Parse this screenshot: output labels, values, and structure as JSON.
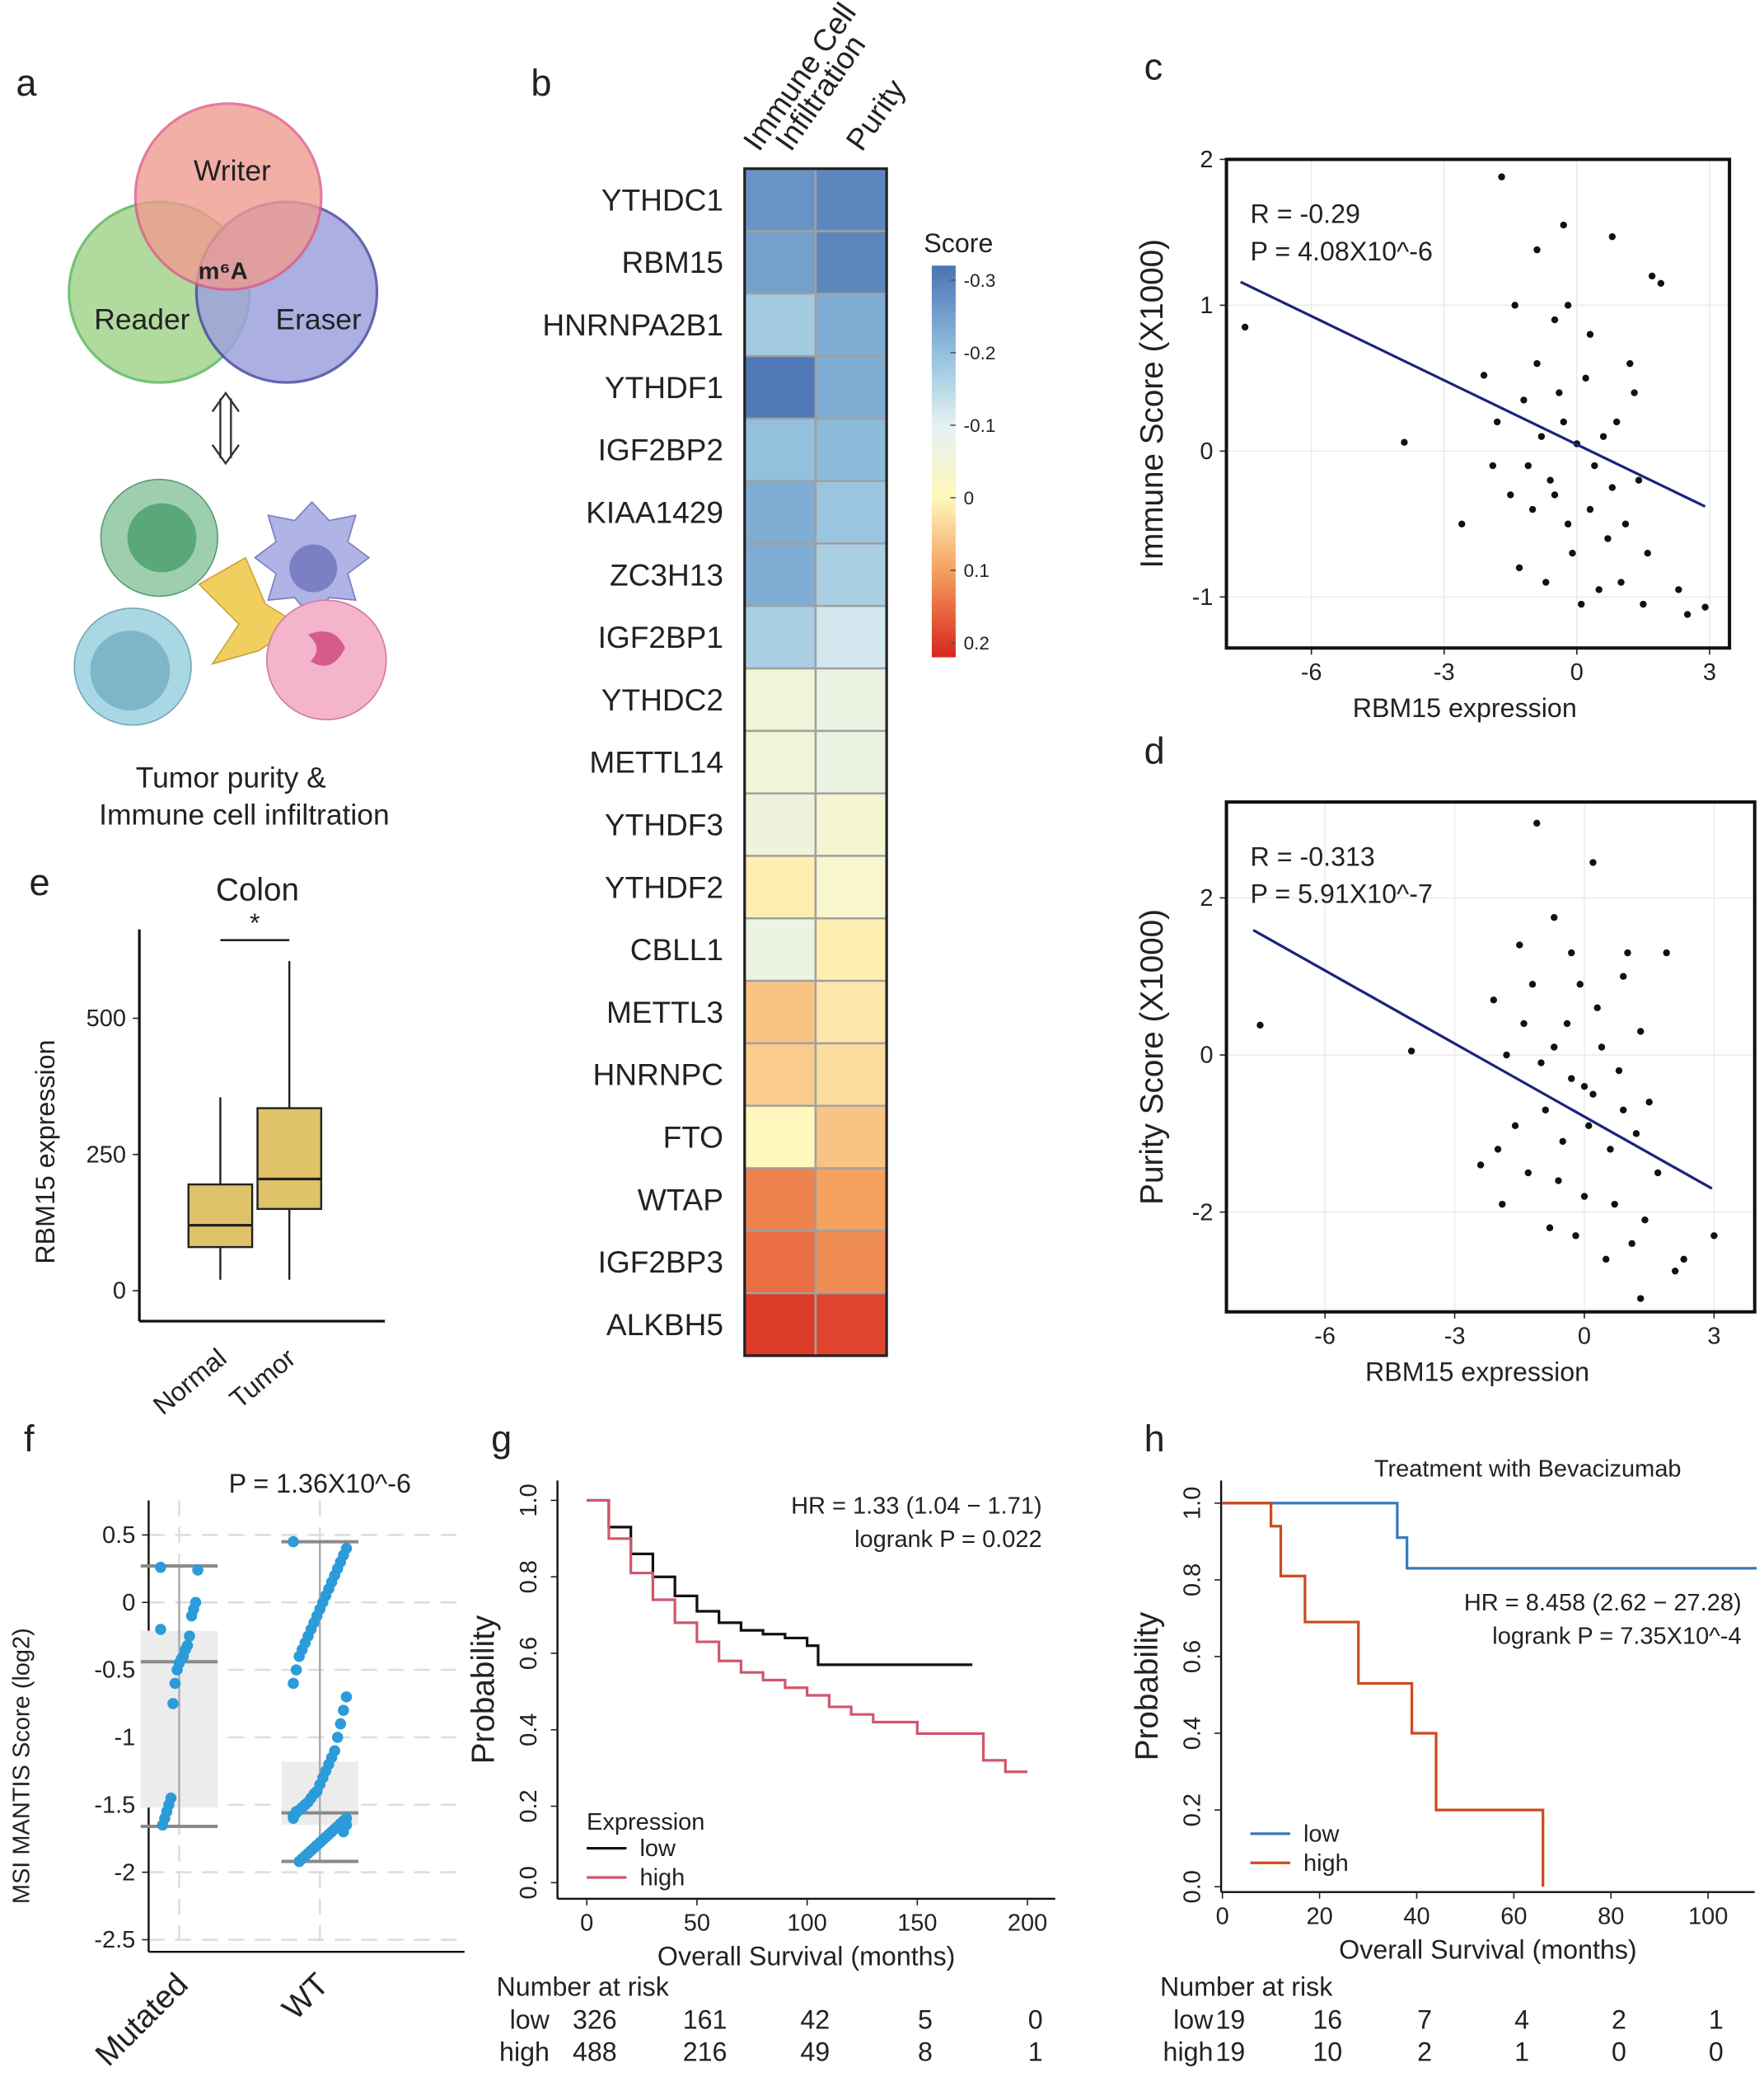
{
  "diagram": {
    "panel": "a",
    "writer": "Writer",
    "reader": "Reader",
    "eraser": "Eraser",
    "center": "m⁶A",
    "caption": [
      "Tumor purity &",
      "Immune cell infiltration"
    ]
  },
  "chart_data": [
    {
      "type": "heatmap",
      "panel": "b",
      "columns": [
        [
          "Immune Cell",
          "Infiltration"
        ],
        [
          "Purity"
        ]
      ],
      "rows": [
        "YTHDC1",
        "RBM15",
        "HNRNPA2B1",
        "YTHDF1",
        "IGF2BP2",
        "KIAA1429",
        "ZC3H13",
        "IGF2BP1",
        "YTHDC2",
        "METTL14",
        "YTHDF3",
        "YTHDF2",
        "CBLL1",
        "METTL3",
        "HNRNPC",
        "FTO",
        "WTAP",
        "IGF2BP3",
        "ALKBH5"
      ],
      "highlight_row": 1,
      "highlight_color": "#d7191c",
      "values": [
        [
          -0.27,
          -0.29
        ],
        [
          -0.25,
          -0.29
        ],
        [
          -0.18,
          -0.23
        ],
        [
          -0.31,
          -0.23
        ],
        [
          -0.2,
          -0.21
        ],
        [
          -0.23,
          -0.19
        ],
        [
          -0.23,
          -0.17
        ],
        [
          -0.17,
          -0.12
        ],
        [
          -0.05,
          -0.07
        ],
        [
          -0.05,
          -0.07
        ],
        [
          -0.06,
          -0.04
        ],
        [
          0.01,
          -0.03
        ],
        [
          -0.07,
          0.01
        ],
        [
          0.06,
          0.02
        ],
        [
          0.05,
          0.03
        ],
        [
          0.0,
          0.06
        ],
        [
          0.13,
          0.1
        ],
        [
          0.15,
          0.12
        ],
        [
          0.2,
          0.19
        ]
      ],
      "legend_title": "Score",
      "colorbar_lim": [
        -0.32,
        0.22
      ],
      "colorbar_ticks": [
        -0.3,
        -0.2,
        -0.1,
        0,
        0.1,
        0.2
      ],
      "colorscale": [
        [
          -0.32,
          "#4a74b4"
        ],
        [
          -0.2,
          "#92c0dd"
        ],
        [
          -0.1,
          "#e3f2f2"
        ],
        [
          0,
          "#fff7bb"
        ],
        [
          0.1,
          "#f5a15f"
        ],
        [
          0.22,
          "#d7261e"
        ]
      ]
    },
    {
      "type": "scatter",
      "panel": "c",
      "frame": "box",
      "grid": true,
      "color": "#111111",
      "x": [
        -7.5,
        -3.9,
        -1.7,
        2.9,
        2.5,
        2.3,
        1.9,
        1.7,
        0.8,
        -0.3,
        -0.9,
        -2.1,
        -2.6,
        -1.4,
        -0.5,
        0.3,
        1.2,
        -1.8,
        -1.2,
        -0.8,
        -0.4,
        0,
        0.4,
        0.9,
        1.4,
        -1.5,
        -1,
        -0.6,
        -0.2,
        0.3,
        0.7,
        1.1,
        1.6,
        -1.3,
        -0.7,
        -0.1,
        0.5,
        1.0,
        1.5,
        -0.3,
        -0.9,
        0.2,
        0.6,
        -1.9,
        -1.1,
        0.1,
        -0.5,
        0.8,
        -0.2,
        1.3
      ],
      "values": [
        0.85,
        0.06,
        1.88,
        -1.07,
        -1.12,
        -0.95,
        1.15,
        1.2,
        1.47,
        1.55,
        1.38,
        0.52,
        -0.5,
        1.0,
        0.9,
        0.8,
        0.6,
        0.2,
        0.35,
        0.1,
        0.4,
        0.05,
        -0.1,
        0.2,
        -0.2,
        -0.3,
        -0.4,
        -0.2,
        -0.5,
        -0.4,
        -0.6,
        -0.5,
        -0.7,
        -0.8,
        -0.9,
        -0.7,
        -0.95,
        -0.9,
        -1.05,
        0.2,
        0.6,
        0.5,
        0.1,
        -0.1,
        -0.1,
        -1.05,
        -0.3,
        -0.25,
        1.0,
        0.4
      ],
      "fit": {
        "x": [
          -7.6,
          2.9
        ],
        "y": [
          1.16,
          -0.38
        ],
        "color": "#1a237e"
      },
      "annotations": [
        "R = -0.29",
        "P = 4.08X10^-6"
      ],
      "xlabel": "RBM15 expression",
      "ylabel": "Immune Score (X1000)",
      "xlim": [
        -7.92,
        3.45
      ],
      "ylim": [
        -1.35,
        2
      ],
      "xticks": [
        -6,
        -3,
        0,
        3
      ],
      "yticks": [
        -1,
        0,
        1,
        2
      ]
    },
    {
      "type": "scatter",
      "panel": "d",
      "frame": "box",
      "grid": true,
      "color": "#111111",
      "x": [
        -7.5,
        -4,
        -1.1,
        0.2,
        3,
        2.3,
        2.1,
        1.3,
        -0.7,
        1,
        -1.5,
        0.9,
        -2.4,
        -2.1,
        -1.2,
        -0.4,
        0.3,
        1.3,
        -1.8,
        -1,
        -0.3,
        0.2,
        0.8,
        1.5,
        -1.6,
        -0.9,
        -0.5,
        0.1,
        0.6,
        1.2,
        -1.3,
        -0.6,
        0,
        0.7,
        1.4,
        -1.9,
        -0.2,
        0.5,
        -0.8,
        1.1,
        -0.1,
        0.4,
        -1.4,
        -0.7,
        1.7,
        -2.0,
        0.0,
        0.9,
        -0.3,
        1.9
      ],
      "values": [
        0.38,
        0.05,
        2.95,
        2.45,
        -2.3,
        -2.6,
        -2.75,
        -3.1,
        1.75,
        1.3,
        1.4,
        1.0,
        -1.4,
        0.7,
        0.9,
        0.4,
        0.6,
        0.3,
        0.0,
        -0.1,
        -0.3,
        -0.5,
        -0.2,
        -0.6,
        -0.9,
        -0.7,
        -1.1,
        -0.9,
        -1.2,
        -1.0,
        -1.5,
        -1.6,
        -1.8,
        -1.9,
        -2.1,
        -1.9,
        -2.3,
        -2.6,
        -2.2,
        -2.4,
        0.9,
        0.1,
        0.4,
        0.1,
        -1.5,
        -1.2,
        -0.4,
        -0.7,
        1.3,
        1.3
      ],
      "fit": {
        "x": [
          -7.66,
          2.95
        ],
        "y": [
          1.59,
          -1.7
        ],
        "color": "#1a237e"
      },
      "annotations": [
        "R = -0.313",
        "P = 5.91X10^-7"
      ],
      "xlabel": "RBM15 expression",
      "ylabel": "Purity Score (X1000)",
      "xlim": [
        -8.28,
        3.94
      ],
      "ylim": [
        -3.27,
        3.22
      ],
      "xticks": [
        -6,
        -3,
        0,
        3
      ],
      "yticks": [
        -2,
        0,
        2
      ]
    },
    {
      "type": "box",
      "panel": "e",
      "title": "Colon",
      "categories": [
        "Normal",
        "Tumor"
      ],
      "color": "#dfc26a",
      "boxes": [
        {
          "min": 20,
          "q1": 80,
          "median": 120,
          "q3": 195,
          "max": 355
        },
        {
          "min": 20,
          "q1": 150,
          "median": 205,
          "q3": 335,
          "max": 605
        }
      ],
      "significance": "*",
      "ylabel": "RBM15 expression",
      "ylim": [
        -56,
        663
      ],
      "yticks": [
        0,
        250,
        500
      ]
    },
    {
      "type": "strip",
      "panel": "f",
      "annotation": "P = 1.36X10^-6",
      "categories": [
        "Mutated",
        "WT"
      ],
      "color": "#2b9bd9",
      "grid": true,
      "boxes": [
        {
          "min": -1.66,
          "q1": -1.52,
          "median": -0.44,
          "q3": -0.21,
          "max": 0.27
        },
        {
          "min": -1.92,
          "q1": -1.65,
          "median": -1.56,
          "q3": -1.18,
          "max": 0.45
        }
      ],
      "points": [
        [
          0.26,
          0.24,
          0.0,
          -0.05,
          -0.1,
          -0.25,
          -0.32,
          -0.35,
          -0.4,
          -0.42,
          -0.45,
          -0.5,
          -0.6,
          -0.75,
          -1.45,
          -1.5,
          -1.55,
          -1.6,
          -1.65,
          -0.2
        ],
        [
          0.45,
          0.4,
          0.35,
          0.3,
          0.25,
          0.2,
          0.15,
          0.1,
          0.05,
          0.0,
          -0.05,
          -0.1,
          -0.15,
          -0.2,
          -0.25,
          -0.3,
          -0.35,
          -0.4,
          -0.5,
          -0.6,
          -0.7,
          -0.8,
          -0.9,
          -1.0,
          -1.1,
          -1.15,
          -1.2,
          -1.25,
          -1.3,
          -1.35,
          -1.4,
          -1.42,
          -1.45,
          -1.48,
          -1.5,
          -1.52,
          -1.54,
          -1.56,
          -1.58,
          -1.6,
          -1.62,
          -1.64,
          -1.66,
          -1.68,
          -1.7,
          -1.72,
          -1.74,
          -1.76,
          -1.78,
          -1.8,
          -1.82,
          -1.84,
          -1.86,
          -1.88,
          -1.9,
          -1.92,
          -1.55,
          -1.6,
          -1.65,
          -1.7
        ]
      ],
      "ylabel": "MSI MANTIS Score (log2)",
      "ylim": [
        -2.59,
        0.756
      ],
      "yticks": [
        0.5,
        0,
        -0.5,
        -1,
        -1.5,
        -2,
        -2.5
      ]
    },
    {
      "type": "km",
      "panel": "g",
      "legend_title": "Expression",
      "series": [
        {
          "name": "low",
          "color": "#111111",
          "x": [
            0,
            10,
            20,
            30,
            40,
            50,
            60,
            70,
            80,
            90,
            100,
            105,
            110,
            175
          ],
          "values": [
            1,
            0.93,
            0.86,
            0.8,
            0.75,
            0.71,
            0.68,
            0.66,
            0.65,
            0.64,
            0.62,
            0.57,
            0.57,
            0.57
          ]
        },
        {
          "name": "high",
          "color": "#d0566e",
          "x": [
            0,
            10,
            20,
            30,
            40,
            50,
            60,
            70,
            80,
            90,
            100,
            110,
            120,
            130,
            140,
            150,
            160,
            180,
            190,
            200
          ],
          "values": [
            1,
            0.9,
            0.81,
            0.74,
            0.68,
            0.63,
            0.58,
            0.55,
            0.53,
            0.51,
            0.49,
            0.46,
            0.44,
            0.42,
            0.42,
            0.39,
            0.39,
            0.32,
            0.29,
            0.29
          ]
        }
      ],
      "annotations": [
        "HR = 1.33 (1.04 − 1.71)",
        "logrank P = 0.022"
      ],
      "xlabel": "Overall Survival (months)",
      "ylabel": "Probability",
      "xlim": [
        -13.3,
        212.6
      ],
      "ylim": [
        -0.042,
        1.052
      ],
      "xticks": [
        0,
        50,
        100,
        150,
        200
      ],
      "yticks": [
        {
          "value": 0,
          "label": "0.0"
        },
        {
          "value": 0.2,
          "label": "0.2"
        },
        {
          "value": 0.4,
          "label": "0.4"
        },
        {
          "value": 0.6,
          "label": "0.6"
        },
        {
          "value": 0.8,
          "label": "0.8"
        },
        {
          "value": 1,
          "label": "1.0"
        }
      ],
      "risk_table": {
        "title": "Number at risk",
        "color_values": true,
        "rows": [
          {
            "name": "low",
            "values": [
              326,
              161,
              42,
              5,
              0
            ]
          },
          {
            "name": "high",
            "values": [
              488,
              216,
              49,
              8,
              1
            ]
          }
        ]
      }
    },
    {
      "type": "km",
      "panel": "h",
      "title": "Treatment with Bevacizumab",
      "series": [
        {
          "name": "low",
          "color": "#3a78c0",
          "x": [
            0,
            36,
            38,
            110
          ],
          "values": [
            1,
            0.91,
            0.83,
            0.83
          ]
        },
        {
          "name": "high",
          "color": "#cc4a1c",
          "x": [
            0,
            10,
            12,
            17,
            28,
            39,
            44,
            66
          ],
          "values": [
            1,
            0.94,
            0.81,
            0.69,
            0.53,
            0.4,
            0.2,
            0
          ]
        }
      ],
      "annotations": [
        "HR = 8.458 (2.62 − 27.28)",
        "logrank P = 7.35X10^-4"
      ],
      "xlabel": "Overall Survival (months)",
      "ylabel": "Probability",
      "xlim": [
        -0.27,
        109.6
      ],
      "ylim": [
        -0.014,
        1.059
      ],
      "xticks": [
        0,
        20,
        40,
        60,
        80,
        100
      ],
      "yticks": [
        {
          "value": 0,
          "label": "0.0"
        },
        {
          "value": 0.2,
          "label": "0.2"
        },
        {
          "value": 0.4,
          "label": "0.4"
        },
        {
          "value": 0.6,
          "label": "0.6"
        },
        {
          "value": 0.8,
          "label": "0.8"
        },
        {
          "value": 1,
          "label": "1.0"
        }
      ],
      "risk_table": {
        "title": "Number at risk",
        "color_values": false,
        "rows": [
          {
            "name": "low",
            "values": [
              19,
              16,
              7,
              4,
              2,
              1
            ]
          },
          {
            "name": "high",
            "values": [
              19,
              10,
              2,
              1,
              0,
              0
            ]
          }
        ]
      }
    }
  ]
}
